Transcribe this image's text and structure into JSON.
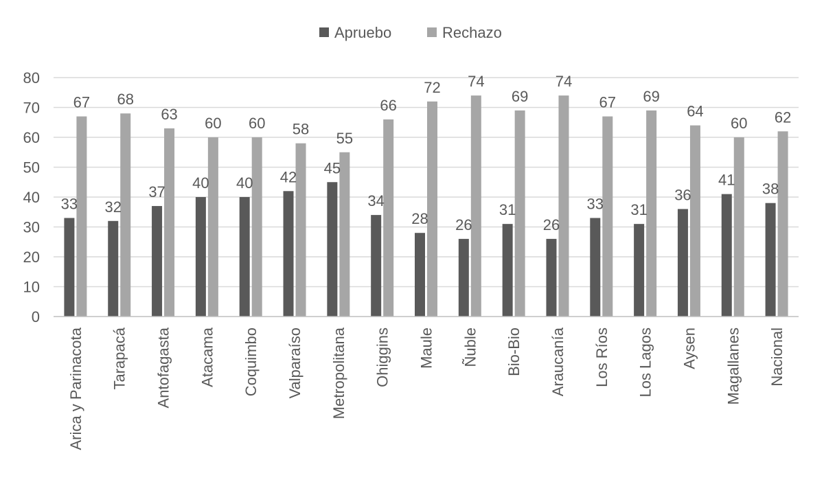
{
  "chart_data": {
    "type": "bar",
    "categories": [
      "Arica y Parinacota",
      "Tarapacá",
      "Antofagasta",
      "Atacama",
      "Coquimbo",
      "Valparaíso",
      "Metropolitana",
      "Ohiggins",
      "Maule",
      "Ñuble",
      "Bio-Bio",
      "Araucanía",
      "Los Ríos",
      "Los Lagos",
      "Aysen",
      "Magallanes",
      "Nacional"
    ],
    "series": [
      {
        "name": "Apruebo",
        "color": "#595959",
        "values": [
          33,
          32,
          37,
          40,
          40,
          42,
          45,
          34,
          28,
          26,
          31,
          26,
          33,
          31,
          36,
          41,
          38
        ]
      },
      {
        "name": "Rechazo",
        "color": "#a6a6a6",
        "values": [
          67,
          68,
          63,
          60,
          60,
          58,
          55,
          66,
          72,
          74,
          69,
          74,
          67,
          69,
          64,
          60,
          62
        ]
      }
    ],
    "ylim": [
      0,
      80
    ],
    "yticks": [
      0,
      10,
      20,
      30,
      40,
      50,
      60,
      70,
      80
    ],
    "grid": true,
    "legend_position": "top",
    "gridline_color": "#d9d9d9",
    "axis_color": "#bfbfbf"
  }
}
